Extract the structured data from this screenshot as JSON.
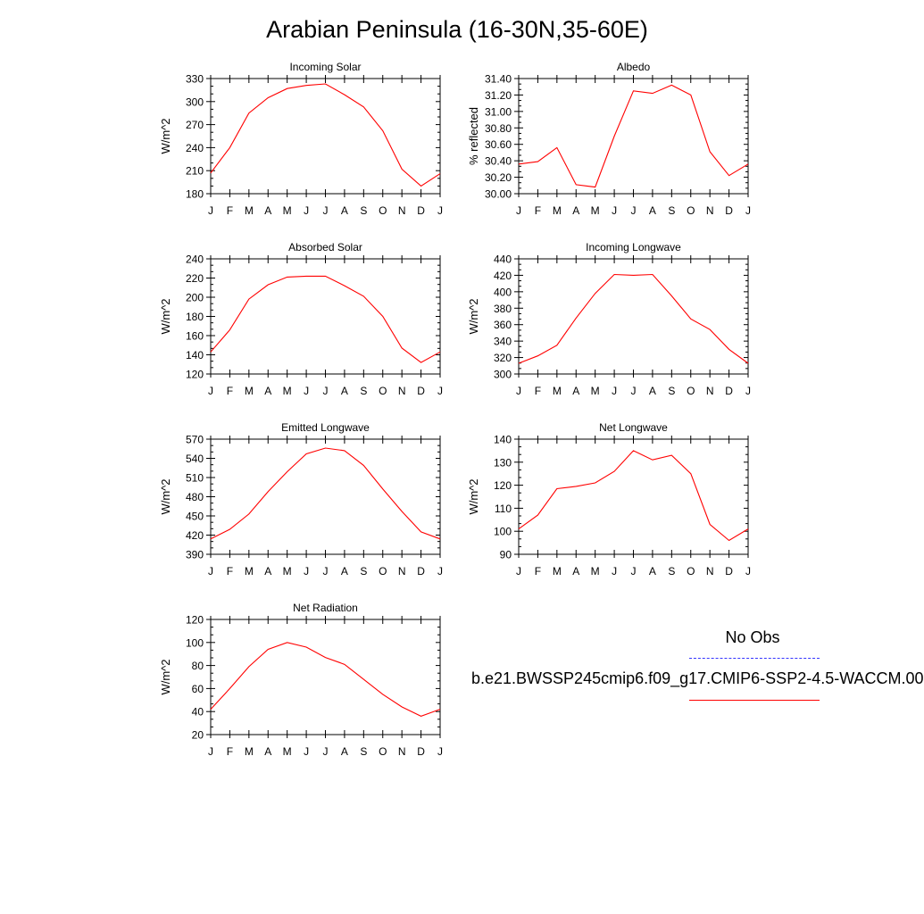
{
  "title": "Arabian Peninsula (16-30N,35-60E)",
  "legend": {
    "obs_label": "No Obs",
    "model_label": "b.e21.BWSSP245cmip6.f09_g17.CMIP6-SSP2-4.5-WACCM.00",
    "obs_color": "#3333ff",
    "model_color": "#ff0000"
  },
  "chart_data": [
    {
      "type": "line",
      "title": "Incoming Solar",
      "ylabel": "W/m^2",
      "categories": [
        "J",
        "F",
        "M",
        "A",
        "M",
        "J",
        "J",
        "A",
        "S",
        "O",
        "N",
        "D",
        "J"
      ],
      "ylim": [
        180,
        330
      ],
      "yticks": [
        "180",
        "210",
        "240",
        "270",
        "300",
        "330"
      ],
      "series": [
        {
          "values": [
            207,
            240,
            285,
            305,
            317,
            321,
            323,
            309,
            293,
            262,
            212,
            190,
            206
          ]
        }
      ]
    },
    {
      "type": "line",
      "title": "Albedo",
      "ylabel": "% reflected",
      "categories": [
        "J",
        "F",
        "M",
        "A",
        "M",
        "J",
        "J",
        "A",
        "S",
        "O",
        "N",
        "D",
        "J"
      ],
      "ylim": [
        30.0,
        31.4
      ],
      "yticks": [
        "30.00",
        "30.20",
        "30.40",
        "30.60",
        "30.80",
        "31.00",
        "31.20",
        "31.40"
      ],
      "series": [
        {
          "values": [
            30.36,
            30.39,
            30.56,
            30.11,
            30.08,
            30.7,
            31.25,
            31.22,
            31.32,
            31.2,
            30.51,
            30.22,
            30.36
          ]
        }
      ]
    },
    {
      "type": "line",
      "title": "Absorbed Solar",
      "ylabel": "W/m^2",
      "categories": [
        "J",
        "F",
        "M",
        "A",
        "M",
        "J",
        "J",
        "A",
        "S",
        "O",
        "N",
        "D",
        "J"
      ],
      "ylim": [
        120,
        240
      ],
      "yticks": [
        "120",
        "140",
        "160",
        "180",
        "200",
        "220",
        "240"
      ],
      "series": [
        {
          "values": [
            143,
            166,
            198,
            213,
            221,
            222,
            222,
            212,
            201,
            180,
            147,
            132,
            143
          ]
        }
      ]
    },
    {
      "type": "line",
      "title": "Incoming Longwave",
      "ylabel": "W/m^2",
      "categories": [
        "J",
        "F",
        "M",
        "A",
        "M",
        "J",
        "J",
        "A",
        "S",
        "O",
        "N",
        "D",
        "J"
      ],
      "ylim": [
        300,
        440
      ],
      "yticks": [
        "300",
        "320",
        "340",
        "360",
        "380",
        "400",
        "420",
        "440"
      ],
      "series": [
        {
          "values": [
            313,
            322,
            335,
            368,
            398,
            421,
            420,
            421,
            395,
            367,
            354,
            330,
            313
          ]
        }
      ]
    },
    {
      "type": "line",
      "title": "Emitted Longwave",
      "ylabel": "W/m^2",
      "categories": [
        "J",
        "F",
        "M",
        "A",
        "M",
        "J",
        "J",
        "A",
        "S",
        "O",
        "N",
        "D",
        "J"
      ],
      "ylim": [
        390,
        570
      ],
      "yticks": [
        "390",
        "420",
        "450",
        "480",
        "510",
        "540",
        "570"
      ],
      "series": [
        {
          "values": [
            414,
            429,
            453,
            488,
            519,
            547,
            556,
            552,
            529,
            492,
            457,
            425,
            414
          ]
        }
      ]
    },
    {
      "type": "line",
      "title": "Net Longwave",
      "ylabel": "W/m^2",
      "categories": [
        "J",
        "F",
        "M",
        "A",
        "M",
        "J",
        "J",
        "A",
        "S",
        "O",
        "N",
        "D",
        "J"
      ],
      "ylim": [
        90,
        140
      ],
      "yticks": [
        "90",
        "100",
        "110",
        "120",
        "130",
        "140"
      ],
      "series": [
        {
          "values": [
            101,
            107,
            118.5,
            119.5,
            121,
            126,
            135,
            131,
            133,
            125,
            103,
            96,
            101
          ]
        }
      ]
    },
    {
      "type": "line",
      "title": "Net Radiation",
      "ylabel": "W/m^2",
      "categories": [
        "J",
        "F",
        "M",
        "A",
        "M",
        "J",
        "J",
        "A",
        "S",
        "O",
        "N",
        "D",
        "J"
      ],
      "ylim": [
        20,
        120
      ],
      "yticks": [
        "20",
        "40",
        "60",
        "80",
        "100",
        "120"
      ],
      "series": [
        {
          "values": [
            42,
            60,
            79,
            94,
            100,
            96,
            87,
            81,
            68,
            55,
            44,
            36,
            42
          ]
        }
      ]
    }
  ]
}
